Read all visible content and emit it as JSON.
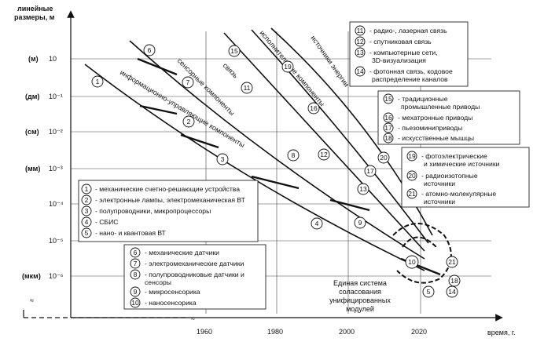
{
  "axes": {
    "y_title_line1": "линейные",
    "y_title_line2": "размеры, м",
    "x_title": "время, г.",
    "y_ticks": [
      {
        "unit": "(м)",
        "value": "10"
      },
      {
        "unit": "(дм)",
        "value": "10⁻¹"
      },
      {
        "unit": "(см)",
        "value": "10⁻²"
      },
      {
        "unit": "(мм)",
        "value": "10⁻³"
      },
      {
        "unit": "",
        "value": "10⁻⁴"
      },
      {
        "unit": "",
        "value": "10⁻⁵"
      },
      {
        "unit": "(мкм)",
        "value": "10⁻⁶"
      }
    ],
    "x_ticks": [
      "1960",
      "1980",
      "2000",
      "2020"
    ]
  },
  "trend_labels": {
    "info": "информационно-управляющие компоненты",
    "sensor": "сенсорные компоненты",
    "comm": "связь",
    "exec": "исполнительные компоненты",
    "energy": "источники энергии"
  },
  "center_note": [
    "Единая система",
    "соласования",
    "унифицированных",
    "модулей"
  ],
  "legend_computing": [
    {
      "num": "1",
      "text": "- механические счетно-решающие устройства"
    },
    {
      "num": "2",
      "text": "- электронные лампы, электромеханическая ВТ"
    },
    {
      "num": "3",
      "text": "- полупроводники, микропроцессоры"
    },
    {
      "num": "4",
      "text": "- СБИС"
    },
    {
      "num": "5",
      "text": "- нано- и квантовая ВТ"
    }
  ],
  "legend_sensors": [
    {
      "num": "6",
      "text": "- механические датчики"
    },
    {
      "num": "7",
      "text": "- электромеханические датчики"
    },
    {
      "num": "8",
      "text": "- полупроводниковые датчики и",
      "text2": "сенсоры"
    },
    {
      "num": "9",
      "text": "- микросенсорика"
    },
    {
      "num": "10",
      "text": "- наносенсорика"
    }
  ],
  "legend_comm": [
    {
      "num": "11",
      "text": "- радио-, лазерная связь"
    },
    {
      "num": "12",
      "text": "- спутниковая связь"
    },
    {
      "num": "13",
      "text": "- компьютерные сети,",
      "text2": "3D-визуализация"
    },
    {
      "num": "14",
      "text": "- фотонная связь, кодовое",
      "text2": "распределение каналов"
    }
  ],
  "legend_actuators": [
    {
      "num": "15",
      "text": "- традиционные",
      "text2": "промышленные приводы"
    },
    {
      "num": "16",
      "text": "- мехатронные приводы"
    },
    {
      "num": "17",
      "text": "- пьезоминиприводы"
    },
    {
      "num": "18",
      "text": "- искусственные мышцы"
    }
  ],
  "legend_energy": [
    {
      "num": "19",
      "text": "- фотоэлектрические",
      "text2": "и химические источники"
    },
    {
      "num": "20",
      "text": "- радиоизотопные",
      "text2": "источники"
    },
    {
      "num": "21",
      "text": "- атомно-молекулярные",
      "text2": "источники"
    }
  ],
  "markers": [
    "1",
    "2",
    "3",
    "4",
    "5",
    "6",
    "7",
    "8",
    "9",
    "10",
    "11",
    "12",
    "13",
    "14",
    "15",
    "16",
    "17",
    "18",
    "19",
    "20",
    "21"
  ]
}
